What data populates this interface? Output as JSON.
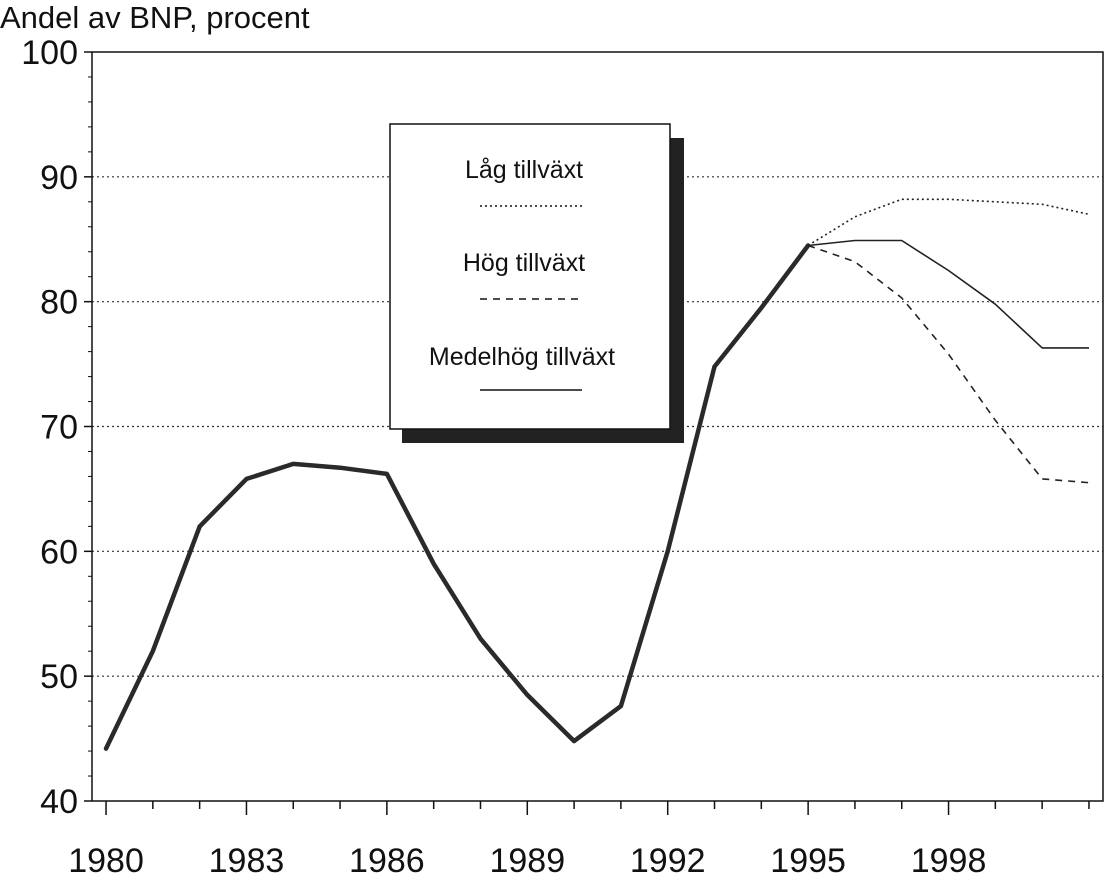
{
  "chart_data": {
    "type": "line",
    "title": "",
    "ylabel": "Andel av BNP, procent",
    "xlabel": "",
    "ylim": [
      40,
      100
    ],
    "yticks": [
      40,
      50,
      60,
      70,
      80,
      90,
      100
    ],
    "xlim": [
      1979.7,
      2001.3
    ],
    "xticks": [
      1980,
      1983,
      1986,
      1989,
      1992,
      1995,
      1998
    ],
    "grid": "horizontal dotted",
    "legend_position": "upper-middle",
    "history": {
      "x": [
        1980,
        1981,
        1982,
        1983,
        1984,
        1985,
        1986,
        1987,
        1988,
        1989,
        1990,
        1991,
        1992,
        1993,
        1994,
        1995
      ],
      "values": [
        44.2,
        52,
        62,
        65.8,
        67,
        66.7,
        66.2,
        59,
        53,
        48.5,
        44.8,
        47.6,
        60,
        74.8,
        79.5,
        84.5
      ]
    },
    "series": [
      {
        "name": "Låg tillväxt",
        "style": "dotted",
        "x": [
          1995,
          1996,
          1997,
          1998,
          1999,
          2000,
          2001
        ],
        "values": [
          84.5,
          86.8,
          88.2,
          88.2,
          88,
          87.8,
          87
        ]
      },
      {
        "name": "Hög tillväxt",
        "style": "dashed",
        "x": [
          1995,
          1996,
          1997,
          1998,
          1999,
          2000,
          2001
        ],
        "values": [
          84.5,
          83.2,
          80.3,
          75.8,
          70.5,
          65.8,
          65.5
        ]
      },
      {
        "name": "Medelhög tillväxt",
        "style": "solid",
        "x": [
          1995,
          1996,
          1997,
          1998,
          1999,
          2000,
          2001
        ],
        "values": [
          84.5,
          84.9,
          84.9,
          82.5,
          79.8,
          76.3,
          76.3
        ]
      }
    ]
  }
}
